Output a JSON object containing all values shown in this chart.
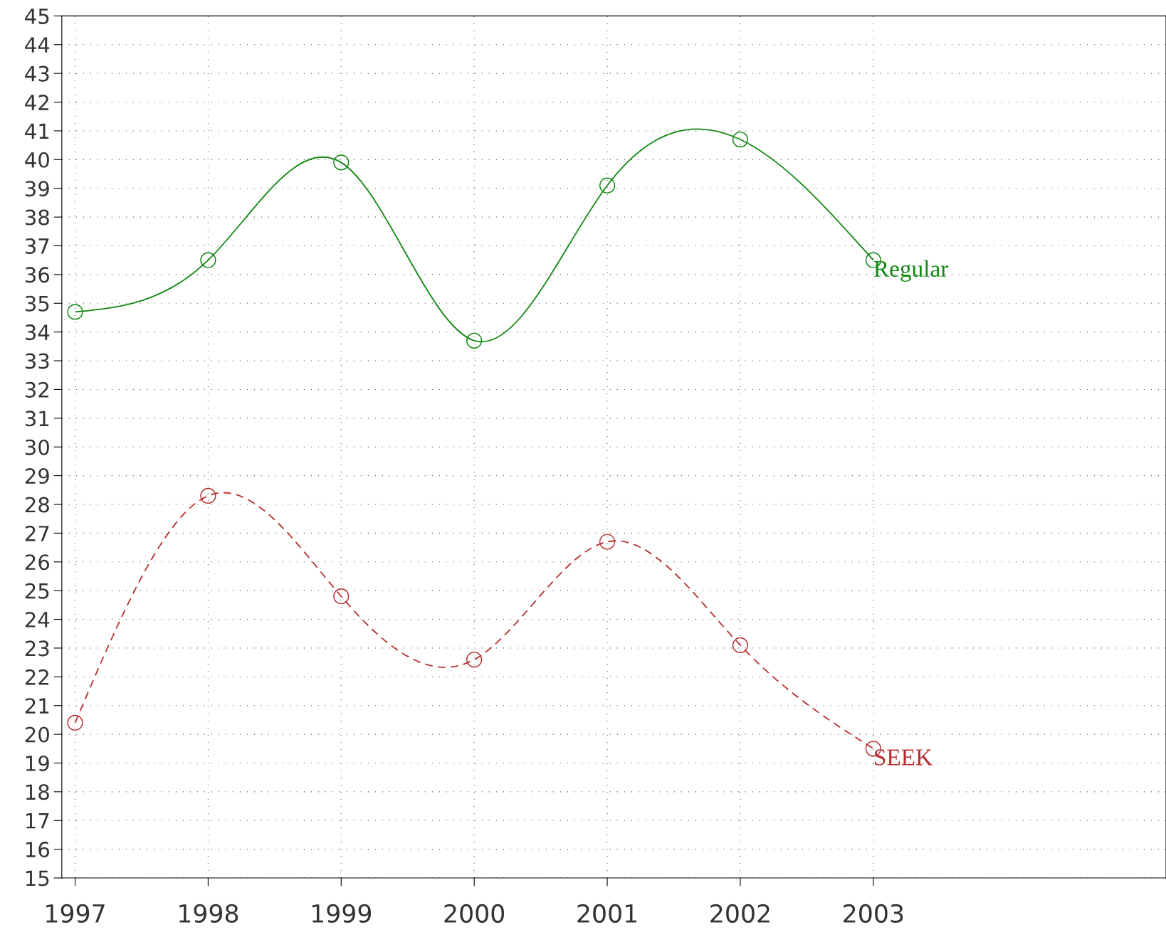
{
  "chart_data": {
    "type": "line",
    "x": [
      1997,
      1998,
      1999,
      2000,
      2001,
      2002,
      2003
    ],
    "series": [
      {
        "name": "Regular",
        "color": "#118811",
        "values": [
          34.7,
          36.5,
          39.9,
          33.7,
          39.1,
          40.7,
          36.5
        ],
        "line_style": "solid"
      },
      {
        "name": "SEEK",
        "color": "#b83030",
        "values": [
          20.4,
          28.3,
          24.8,
          22.6,
          26.7,
          23.1,
          19.5
        ],
        "line_style": "dashed"
      }
    ],
    "xlim": [
      1996.9,
      2005.2
    ],
    "xticks": [
      1997,
      1998,
      1999,
      2000,
      2001,
      2002,
      2003
    ],
    "ylim": [
      15,
      45
    ],
    "yticks": [
      15,
      16,
      17,
      18,
      19,
      20,
      21,
      22,
      23,
      24,
      25,
      26,
      27,
      28,
      29,
      30,
      31,
      32,
      33,
      34,
      35,
      36,
      37,
      38,
      39,
      40,
      41,
      42,
      43,
      44,
      45
    ],
    "grid": true,
    "marker": "circle",
    "legend": false
  }
}
